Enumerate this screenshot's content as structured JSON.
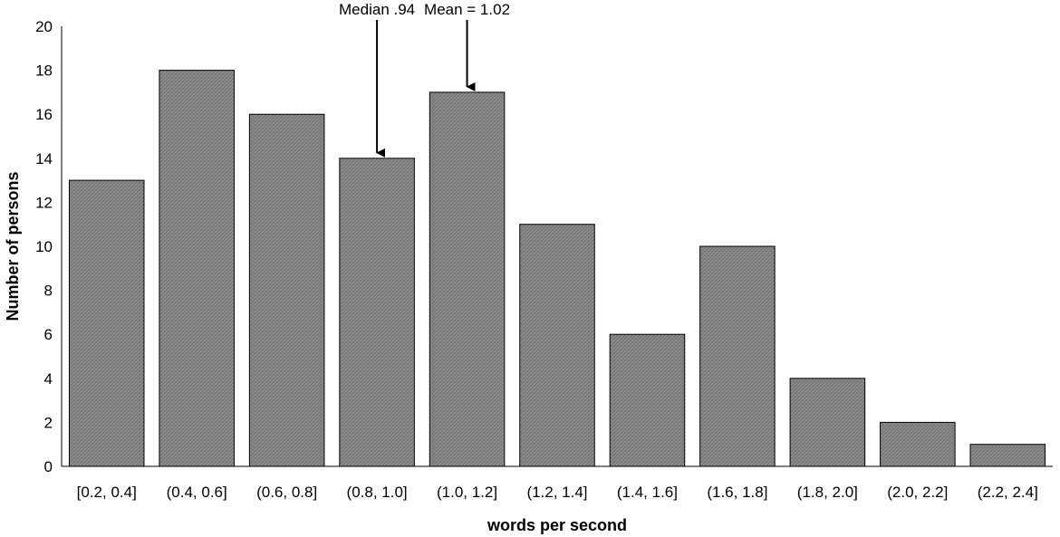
{
  "chart_data": {
    "type": "bar",
    "title": "",
    "xlabel": "words per second",
    "ylabel": "Number of persons",
    "categories": [
      "[0.2, 0.4]",
      "(0.4, 0.6]",
      "(0.6, 0.8]",
      "(0.8, 1.0]",
      "(1.0, 1.2]",
      "(1.2, 1.4]",
      "(1.4, 1.6]",
      "(1.6, 1.8]",
      "(1.8, 2.0]",
      "(2.0, 2.2]",
      "(2.2, 2.4]"
    ],
    "values": [
      13,
      18,
      16,
      14,
      17,
      11,
      6,
      10,
      4,
      2,
      1
    ],
    "ylim": [
      0,
      20
    ],
    "yticks": [
      0,
      2,
      4,
      6,
      8,
      10,
      12,
      14,
      16,
      18,
      20
    ],
    "grid": false,
    "bar_color": "#858585",
    "annotations": [
      {
        "text": "Median .94",
        "category_index": 3
      },
      {
        "text": "Mean = 1.02",
        "category_index": 4
      }
    ]
  }
}
